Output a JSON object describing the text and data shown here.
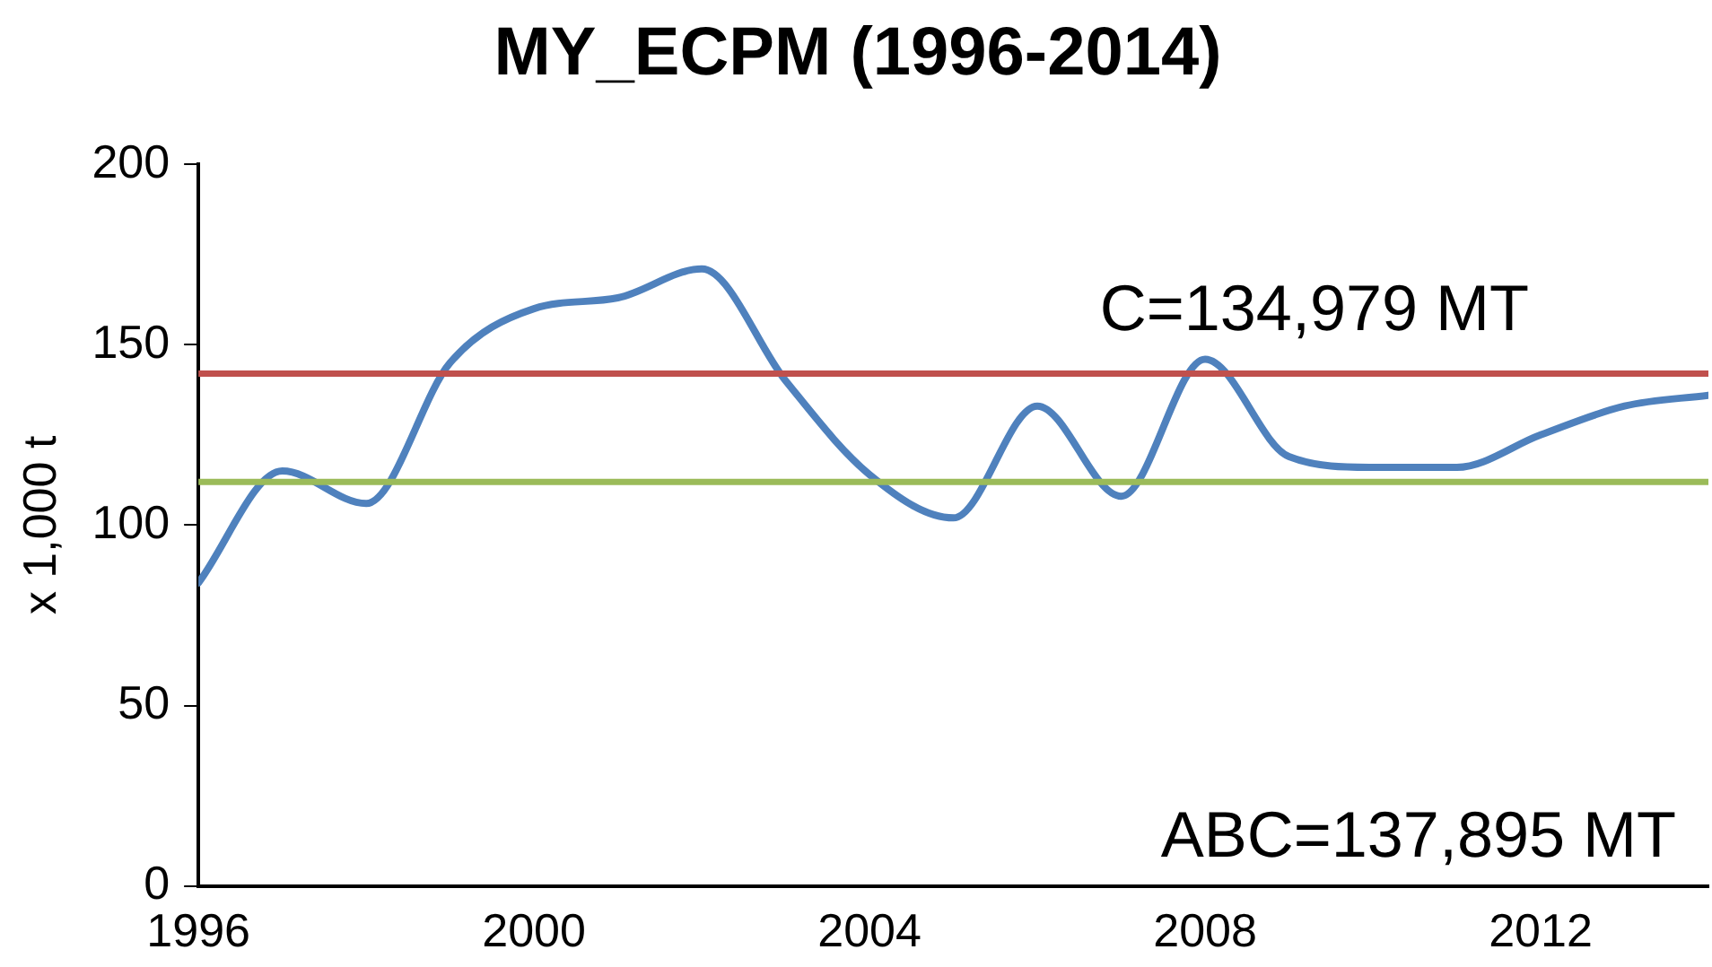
{
  "chart_data": {
    "type": "line",
    "title": "MY_ECPM (1996-2014)",
    "ylabel": "x 1,000 t",
    "x": [
      1996,
      1997,
      1998,
      1999,
      2000,
      2001,
      2002,
      2003,
      2004,
      2005,
      2006,
      2007,
      2008,
      2009,
      2010,
      2011,
      2012,
      2013,
      2014
    ],
    "series": [
      {
        "color": "#4f81bd",
        "values": [
          84,
          115,
          106,
          145,
          160,
          163,
          171,
          140,
          114,
          102,
          133,
          108,
          146,
          119,
          116,
          116,
          125,
          133,
          136
        ]
      }
    ],
    "xlim": [
      1996,
      2014
    ],
    "xticks": [
      1996,
      2000,
      2004,
      2008,
      2012
    ],
    "ylim": [
      0,
      200
    ],
    "yticks": [
      0,
      50,
      100,
      150,
      200
    ],
    "ref_lines": [
      {
        "axis": "y",
        "value": 142,
        "color": "#c0504d"
      },
      {
        "axis": "y",
        "value": 112,
        "color": "#9bbb59"
      }
    ],
    "annotations": [
      "C=134,979 MT",
      "ABC=137,895 MT"
    ],
    "grid": false,
    "legend": false,
    "marker": "none",
    "line_style": "solid"
  }
}
